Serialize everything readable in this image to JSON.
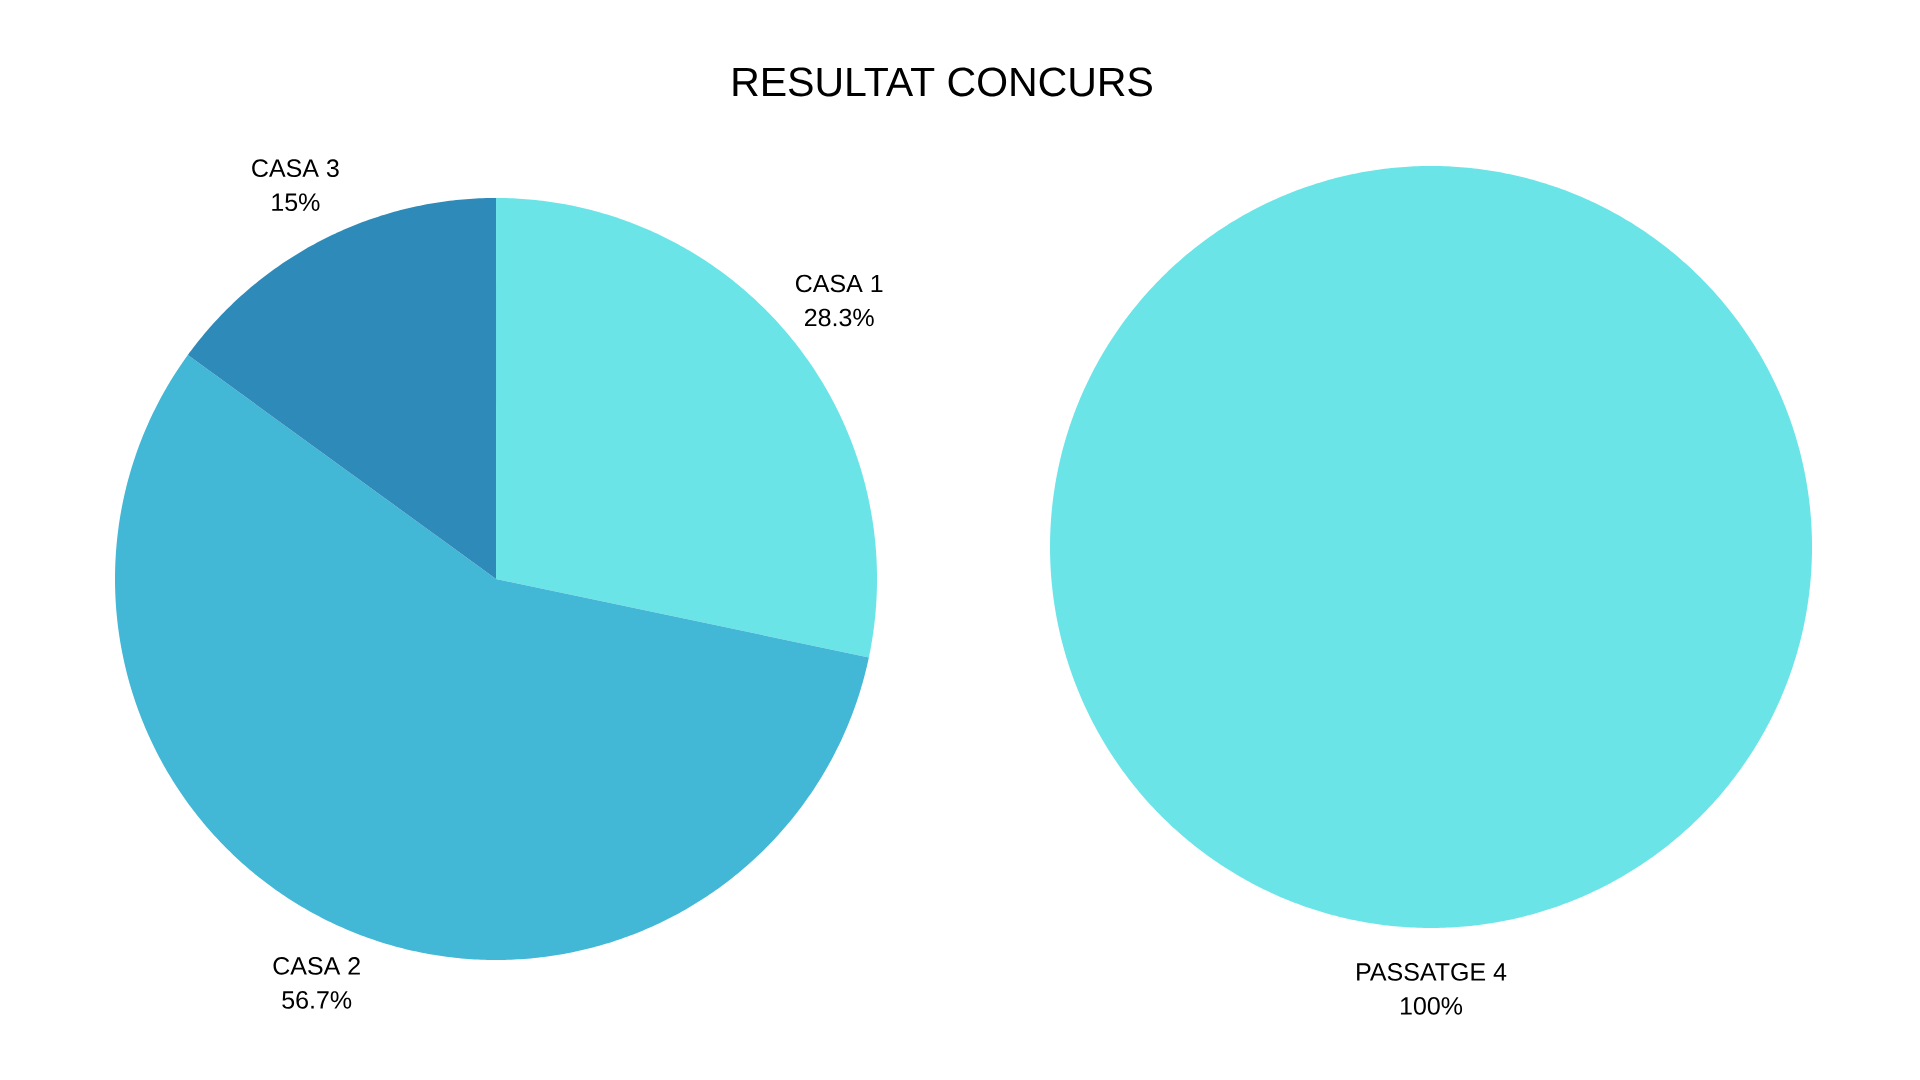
{
  "chart_data": [
    {
      "type": "pie",
      "title": "RESULTAT CONCURS",
      "categories": [
        "CASA 1",
        "CASA 2",
        "CASA 3"
      ],
      "values": [
        28.3,
        56.7,
        15
      ],
      "colors": [
        "#6be4e8",
        "#43b7d6",
        "#2e8ab8"
      ],
      "value_labels": [
        "28.3%",
        "56.7%",
        "15%"
      ]
    },
    {
      "type": "pie",
      "categories": [
        "PASSATGE 4"
      ],
      "values": [
        100
      ],
      "colors": [
        "#6be4e8"
      ],
      "value_labels": [
        "100%"
      ]
    }
  ]
}
